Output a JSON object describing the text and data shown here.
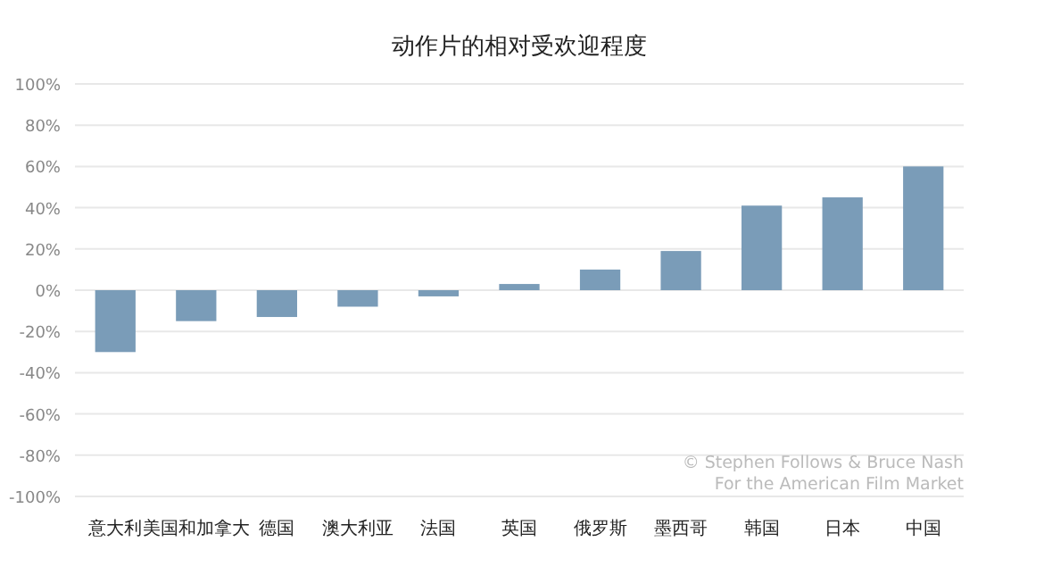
{
  "chart_data": {
    "type": "bar",
    "title": "动作片的相对受欢迎程度",
    "categories": [
      "意大利",
      "美国和加拿大",
      "德国",
      "澳大利亚",
      "法国",
      "英国",
      "俄罗斯",
      "墨西哥",
      "韩国",
      "日本",
      "中国"
    ],
    "values": [
      -30,
      -15,
      -13,
      -8,
      -3,
      3,
      10,
      19,
      41,
      45,
      60
    ],
    "color": "#7a9cb8",
    "ylim": [
      -100,
      100
    ],
    "yticks": [
      {
        "value": -100,
        "label": "-100%"
      },
      {
        "value": -80,
        "label": "-80%"
      },
      {
        "value": -60,
        "label": "-60%"
      },
      {
        "value": -40,
        "label": "-40%"
      },
      {
        "value": -20,
        "label": "-20%"
      },
      {
        "value": 0,
        "label": "0%"
      },
      {
        "value": 20,
        "label": "20%"
      },
      {
        "value": 40,
        "label": "40%"
      },
      {
        "value": 60,
        "label": "60%"
      },
      {
        "value": 80,
        "label": "80%"
      },
      {
        "value": 100,
        "label": "100%"
      }
    ],
    "grid": "y",
    "annotations": [
      "© Stephen Follows & Bruce Nash For the American Film Market"
    ]
  }
}
